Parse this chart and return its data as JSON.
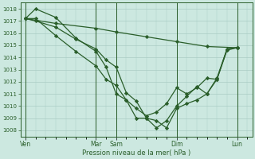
{
  "title": "",
  "xlabel": "Pression niveau de la mer( hPa )",
  "ylabel": "",
  "bg_color": "#cce8e0",
  "line_color": "#2a5e2a",
  "grid_color": "#aaccc4",
  "ylim": [
    1007.5,
    1018.5
  ],
  "yticks": [
    1008,
    1009,
    1010,
    1011,
    1012,
    1013,
    1014,
    1015,
    1016,
    1017,
    1018
  ],
  "xtick_labels": [
    "Ven",
    "Mar",
    "Sam",
    "Dim",
    "Lun"
  ],
  "xtick_positions": [
    0,
    7,
    9,
    15,
    21
  ],
  "xlim": [
    -0.5,
    22.5
  ],
  "line1_x": [
    0,
    3,
    7,
    9,
    12,
    15,
    18,
    21
  ],
  "line1_y": [
    1017.2,
    1016.8,
    1016.4,
    1016.1,
    1015.7,
    1015.3,
    1014.9,
    1014.8
  ],
  "line2_x": [
    0,
    1,
    3,
    5,
    7,
    8,
    9,
    10,
    11,
    12,
    13,
    14,
    15,
    16,
    17,
    18,
    19,
    20,
    21
  ],
  "line2_y": [
    1017.2,
    1017.0,
    1016.5,
    1015.5,
    1014.7,
    1013.8,
    1013.2,
    1011.1,
    1010.4,
    1009.0,
    1008.8,
    1008.2,
    1009.8,
    1010.2,
    1010.5,
    1011.0,
    1012.3,
    1014.7,
    1014.8
  ],
  "line3_x": [
    0,
    1,
    3,
    5,
    7,
    8,
    9,
    10,
    11,
    12,
    13,
    14,
    15,
    16,
    17,
    18,
    19,
    20,
    21
  ],
  "line3_y": [
    1017.2,
    1018.0,
    1017.3,
    1015.6,
    1014.5,
    1013.2,
    1011.0,
    1010.5,
    1009.0,
    1009.0,
    1008.2,
    1008.8,
    1010.0,
    1010.8,
    1011.6,
    1011.0,
    1012.2,
    1014.7,
    1014.8
  ],
  "line4_x": [
    0,
    1,
    3,
    5,
    7,
    8,
    9,
    10,
    11,
    12,
    13,
    14,
    15,
    16,
    17,
    18,
    19,
    20,
    21
  ],
  "line4_y": [
    1017.2,
    1017.2,
    1015.8,
    1014.5,
    1013.3,
    1012.2,
    1011.7,
    1010.5,
    1009.8,
    1009.2,
    1009.5,
    1010.2,
    1011.5,
    1011.0,
    1011.5,
    1012.3,
    1012.2,
    1014.6,
    1014.8
  ],
  "marker": "D",
  "markersize": 2.2,
  "linewidth": 0.9
}
